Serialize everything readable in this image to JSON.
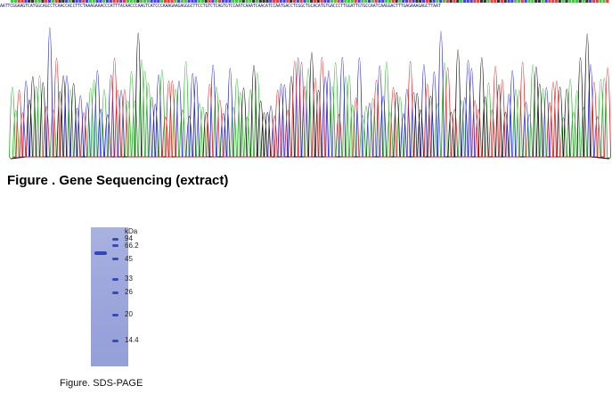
{
  "sequence": {
    "bases": "AATTCGGAAGTCATGGCAGCCTCAACCACCTTCTAAAGAAACCCATTTACAACCCAAGTCATCCCAAAGAAGAGGGCTTCCTGTCTCAGTGTCCAATCAAATCAACATCCAATGACCTCGGCTGCACATGTGACCCTTGGATTGTGCCAATCAAGGACTTTGAGAAAGAGCTTAAT",
    "caption": "Figure . Gene Sequencing (extract)",
    "colors": {
      "A": "#2fb42f",
      "C": "#2424d6",
      "G": "#111111",
      "T": "#e02020"
    }
  },
  "gel": {
    "kda_label": "kDa",
    "markers": [
      "94",
      "66.2",
      "45",
      "33",
      "26",
      "20",
      "14.4"
    ],
    "caption": "Figure. SDS-PAGE"
  }
}
